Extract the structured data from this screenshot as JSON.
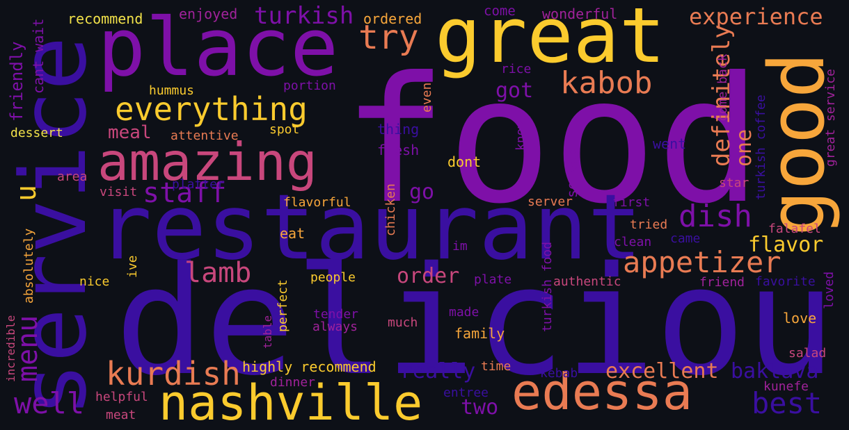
{
  "colors": {
    "background": "#0d1017",
    "indigo": "#3a0fa0",
    "purple": "#7e10a8",
    "magenta": "#a0229a",
    "pink": "#c8477c",
    "orange": "#e97b53",
    "amber": "#f7a63b",
    "gold": "#fbcb2e",
    "yellow": "#f2e24a"
  },
  "words": [
    "food",
    "delicious",
    "restaurant",
    "service",
    "place",
    "great",
    "good",
    "amazing",
    "nashville",
    "edessa",
    "everything",
    "kabob",
    "try",
    "turkish",
    "experience",
    "menu",
    "u",
    "staff",
    "kurdish",
    "well",
    "lamb",
    "appetizer",
    "dish",
    "best",
    "definitely",
    "one",
    "flavor",
    "order",
    "excellent",
    "baklava",
    "really",
    "two",
    "go",
    "got",
    "meal",
    "friendly",
    "cant wait",
    "recommend",
    "enjoyed",
    "ordered",
    "come",
    "wonderful",
    "hummus",
    "portion",
    "rice",
    "even",
    "thing",
    "fresh",
    "know",
    "attentive",
    "spot",
    "dessert",
    "dont",
    "served",
    "went",
    "come back",
    "turkish coffee",
    "great service",
    "area",
    "visit",
    "platter",
    "flavorful",
    "chicken",
    "server",
    "first",
    "star",
    "tried",
    "falafel",
    "eat",
    "clean",
    "came",
    "im",
    "absolutely",
    "ive",
    "nice",
    "people",
    "perfect",
    "plate",
    "authentic",
    "friend",
    "favorite",
    "turkish food",
    "incredible",
    "table",
    "tender",
    "made",
    "always",
    "much",
    "family",
    "love",
    "loved",
    "highly recommend",
    "time",
    "salad",
    "dinner",
    "entree",
    "kebab",
    "helpful",
    "meat",
    "kunefe"
  ]
}
